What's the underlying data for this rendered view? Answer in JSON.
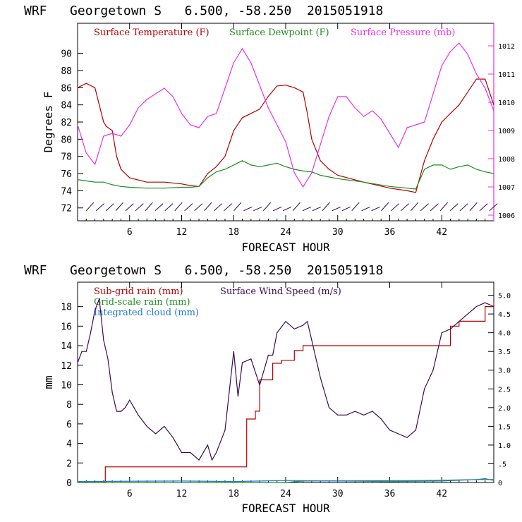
{
  "chart_data": [
    {
      "type": "line",
      "title": "WRF   Georgetown S   6.500, -58.250  2015051918",
      "xlabel": "FORECAST HOUR",
      "ylabel": "Degrees F",
      "xlim": [
        0,
        48
      ],
      "ylim": [
        70.5,
        93.5
      ],
      "y2lim": [
        1005.8,
        1012.8
      ],
      "x_ticks": [
        "6",
        "12",
        "18",
        "24",
        "30",
        "36",
        "42"
      ],
      "y_ticks": [
        "72",
        "74",
        "76",
        "78",
        "80",
        "82",
        "84",
        "86",
        "88",
        "90"
      ],
      "y2_ticks": [
        "1006",
        "1007",
        "1008",
        "1009",
        "1010",
        "1011",
        "1012"
      ],
      "series": [
        {
          "name": "Surface Temperature (F)",
          "color": "#b30000",
          "axis": "left",
          "x": [
            0,
            1,
            2,
            2.5,
            3,
            3.3,
            4,
            4.5,
            5,
            6,
            8,
            10,
            12,
            13,
            14,
            15,
            16,
            17,
            18,
            19,
            20,
            21,
            22,
            23,
            24,
            25,
            26,
            26.5,
            27,
            28,
            29,
            30,
            33,
            36,
            38,
            39,
            40,
            41,
            42,
            43,
            44,
            45,
            46,
            47,
            48
          ],
          "y": [
            86,
            86.5,
            86,
            84,
            82,
            81.5,
            81,
            78,
            76.5,
            75.5,
            75,
            75,
            74.8,
            74.6,
            74.5,
            76,
            76.8,
            78,
            81,
            82.5,
            83,
            83.5,
            85,
            86.2,
            86.3,
            86,
            85.5,
            83,
            80,
            77.5,
            76.5,
            75.8,
            75,
            74.3,
            74,
            73.8,
            77.5,
            80,
            82,
            83,
            84,
            85.5,
            87,
            87,
            84
          ]
        },
        {
          "name": "Surface Dewpoint (F)",
          "color": "#1e8c1e",
          "axis": "left",
          "x": [
            0,
            2,
            3,
            4,
            5,
            6,
            8,
            10,
            12,
            13,
            14,
            15,
            16,
            17,
            18,
            19,
            20,
            21,
            22,
            23,
            24,
            25,
            26,
            27,
            28,
            29,
            30,
            33,
            36,
            38,
            39,
            40,
            41,
            42,
            43,
            44,
            45,
            46,
            47,
            48
          ],
          "y": [
            75.3,
            75,
            75,
            74.7,
            74.5,
            74.4,
            74.3,
            74.3,
            74.4,
            74.4,
            74.5,
            75.5,
            76.2,
            76.5,
            77,
            77.5,
            77,
            76.8,
            77,
            77.2,
            76.8,
            76.5,
            76.3,
            76.2,
            75.8,
            75.6,
            75.4,
            75,
            74.5,
            74.3,
            74.2,
            76.5,
            77,
            77,
            76.5,
            76.8,
            77,
            76.5,
            76.2,
            76
          ]
        },
        {
          "name": "Surface Pressure (mb)",
          "color": "#e830e8",
          "axis": "right",
          "x": [
            0,
            1,
            2,
            3,
            4,
            5,
            6,
            7,
            8,
            9,
            10,
            11,
            12,
            13,
            14,
            15,
            16,
            17,
            18,
            19,
            20,
            21,
            22,
            23,
            24,
            25,
            26,
            27,
            28,
            29,
            30,
            31,
            32,
            33,
            34,
            35,
            36,
            37,
            38,
            39,
            40,
            41,
            42,
            43,
            44,
            45,
            46,
            47,
            48
          ],
          "y": [
            1009.2,
            1008.2,
            1007.8,
            1008.8,
            1008.9,
            1008.8,
            1009.2,
            1009.8,
            1010.1,
            1010.3,
            1010.5,
            1010.2,
            1009.6,
            1009.2,
            1009.1,
            1009.5,
            1009.6,
            1010.5,
            1011.4,
            1011.9,
            1011.4,
            1010.6,
            1009.8,
            1009.2,
            1008.6,
            1007.5,
            1007,
            1007.5,
            1008.5,
            1009.5,
            1010.2,
            1010.2,
            1009.8,
            1009.5,
            1009.7,
            1009.4,
            1008.9,
            1008.4,
            1009.1,
            1009.2,
            1009.3,
            1010.3,
            1011.3,
            1011.8,
            1012.1,
            1011.7,
            1011,
            1010.5,
            1009.7
          ]
        }
      ],
      "wind_barbs": {
        "color": "#3c0a50",
        "y_level": 72,
        "x_start": 1,
        "x_end": 47.5,
        "count": 42
      },
      "legend_placement": "top"
    },
    {
      "type": "line",
      "title": "WRF   Georgetown S   6.500, -58.250  2015051918",
      "xlabel": "FORECAST HOUR",
      "ylabel": "mm",
      "xlim": [
        0,
        48
      ],
      "ylim": [
        0,
        20.5
      ],
      "y2lim": [
        0,
        5.35
      ],
      "x_ticks": [
        "6",
        "12",
        "18",
        "24",
        "30",
        "36",
        "42"
      ],
      "y_ticks": [
        "0",
        "2",
        "4",
        "6",
        "8",
        "10",
        "12",
        "14",
        "16",
        "18"
      ],
      "y2_ticks": [
        "0",
        ".5",
        "1.0",
        "1.5",
        "2.0",
        "2.5",
        "3.0",
        "3.5",
        "4.0",
        "4.5",
        "5.0"
      ],
      "series": [
        {
          "name": "Sub-grid rain (mm)",
          "color": "#b30000",
          "axis": "left",
          "step": true,
          "x": [
            0,
            3,
            3.2,
            18.5,
            19.5,
            20.5,
            21,
            22.5,
            23.5,
            25,
            26,
            30,
            42,
            43,
            44,
            47,
            48
          ],
          "y": [
            0,
            0,
            1.6,
            1.6,
            6.5,
            7.3,
            10.5,
            12.2,
            12.5,
            13.5,
            14,
            14,
            14,
            16,
            16.5,
            18,
            18.5
          ]
        },
        {
          "name": "Grid-scale rain (mm)",
          "color": "#1e8c1e",
          "axis": "left",
          "x": [
            0,
            24,
            26,
            40,
            46,
            48
          ],
          "y": [
            0,
            0,
            0.15,
            0.2,
            0.3,
            0.3
          ]
        },
        {
          "name": "Integrated cloud (mm)",
          "color": "#1e78d2",
          "axis": "left",
          "x": [
            0,
            12,
            18,
            24,
            30,
            36,
            42,
            46,
            47,
            48
          ],
          "y": [
            0.1,
            0.15,
            0.1,
            0.2,
            0.15,
            0.1,
            0.15,
            0.3,
            0.4,
            0.2
          ]
        },
        {
          "name": "Surface Wind Speed (m/s)",
          "color": "#3c0a50",
          "axis": "right",
          "x": [
            0,
            0.5,
            1,
            1.5,
            2,
            2.5,
            3,
            3.5,
            4,
            4.5,
            5,
            5.5,
            6,
            7,
            8,
            9,
            10,
            11,
            12,
            13,
            14,
            15,
            15.5,
            16,
            17,
            18,
            18.5,
            19,
            20,
            21,
            22,
            22.5,
            23,
            24,
            25,
            26,
            26.5,
            27,
            28,
            29,
            30,
            31,
            32,
            33,
            34,
            35,
            36,
            37,
            38,
            39,
            40,
            41,
            42,
            43,
            44,
            45,
            46,
            47,
            48
          ],
          "y": [
            3.2,
            3.5,
            3.5,
            4.0,
            4.6,
            4.9,
            3.8,
            3.3,
            2.4,
            1.9,
            1.9,
            2.0,
            2.2,
            1.8,
            1.5,
            1.3,
            1.5,
            1.2,
            0.8,
            0.8,
            0.6,
            1.0,
            0.6,
            0.8,
            1.4,
            3.5,
            2.3,
            3.2,
            3.3,
            2.6,
            3.4,
            3.4,
            4.0,
            4.3,
            4.1,
            4.2,
            4.3,
            3.8,
            2.8,
            2.0,
            1.8,
            1.8,
            1.9,
            1.8,
            1.9,
            1.7,
            1.4,
            1.3,
            1.2,
            1.4,
            2.5,
            3.0,
            4.0,
            4.1,
            4.3,
            4.5,
            4.7,
            4.8,
            4.7
          ]
        }
      ],
      "legend_placement": "top"
    }
  ]
}
